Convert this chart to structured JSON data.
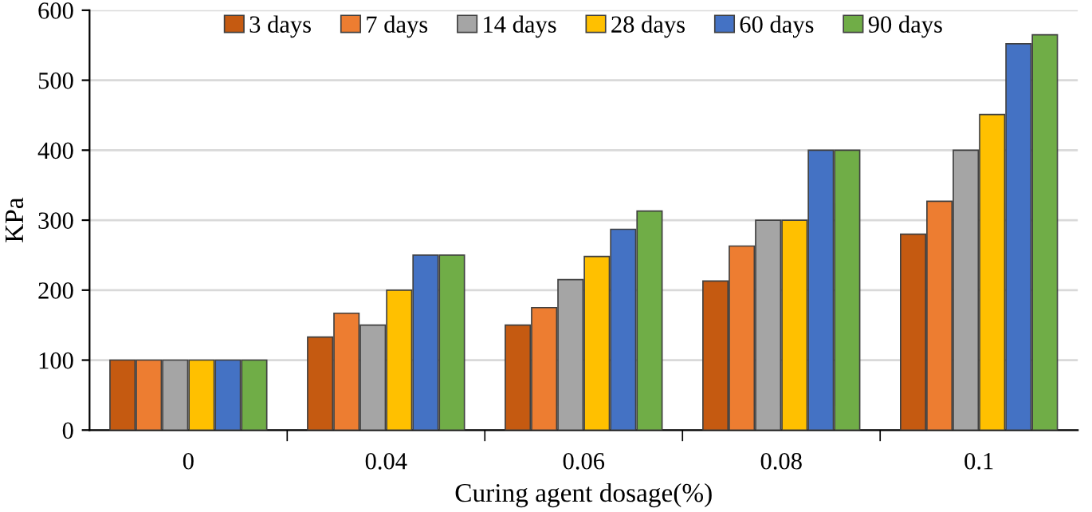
{
  "chart_data": {
    "type": "bar",
    "xlabel": "Curing agent dosage(%)",
    "ylabel": "KPa",
    "categories": [
      "0",
      "0.04",
      "0.06",
      "0.08",
      "0.1"
    ],
    "series": [
      {
        "name": "3 days",
        "color": "#c55a11",
        "values": [
          100,
          133,
          150,
          213,
          280
        ]
      },
      {
        "name": "7 days",
        "color": "#ed7d31",
        "values": [
          100,
          167,
          175,
          263,
          327
        ]
      },
      {
        "name": "14 days",
        "color": "#a5a5a5",
        "values": [
          100,
          150,
          215,
          300,
          400
        ]
      },
      {
        "name": "28 days",
        "color": "#ffc000",
        "values": [
          100,
          200,
          248,
          300,
          451
        ]
      },
      {
        "name": "60 days",
        "color": "#4472c4",
        "values": [
          100,
          250,
          287,
          400,
          552
        ]
      },
      {
        "name": "90 days",
        "color": "#70ad47",
        "values": [
          100,
          250,
          313,
          400,
          565
        ]
      }
    ],
    "ylim": [
      0,
      600
    ],
    "yticks": [
      0,
      100,
      200,
      300,
      400,
      500,
      600
    ],
    "grid": "y",
    "legend": "top"
  }
}
